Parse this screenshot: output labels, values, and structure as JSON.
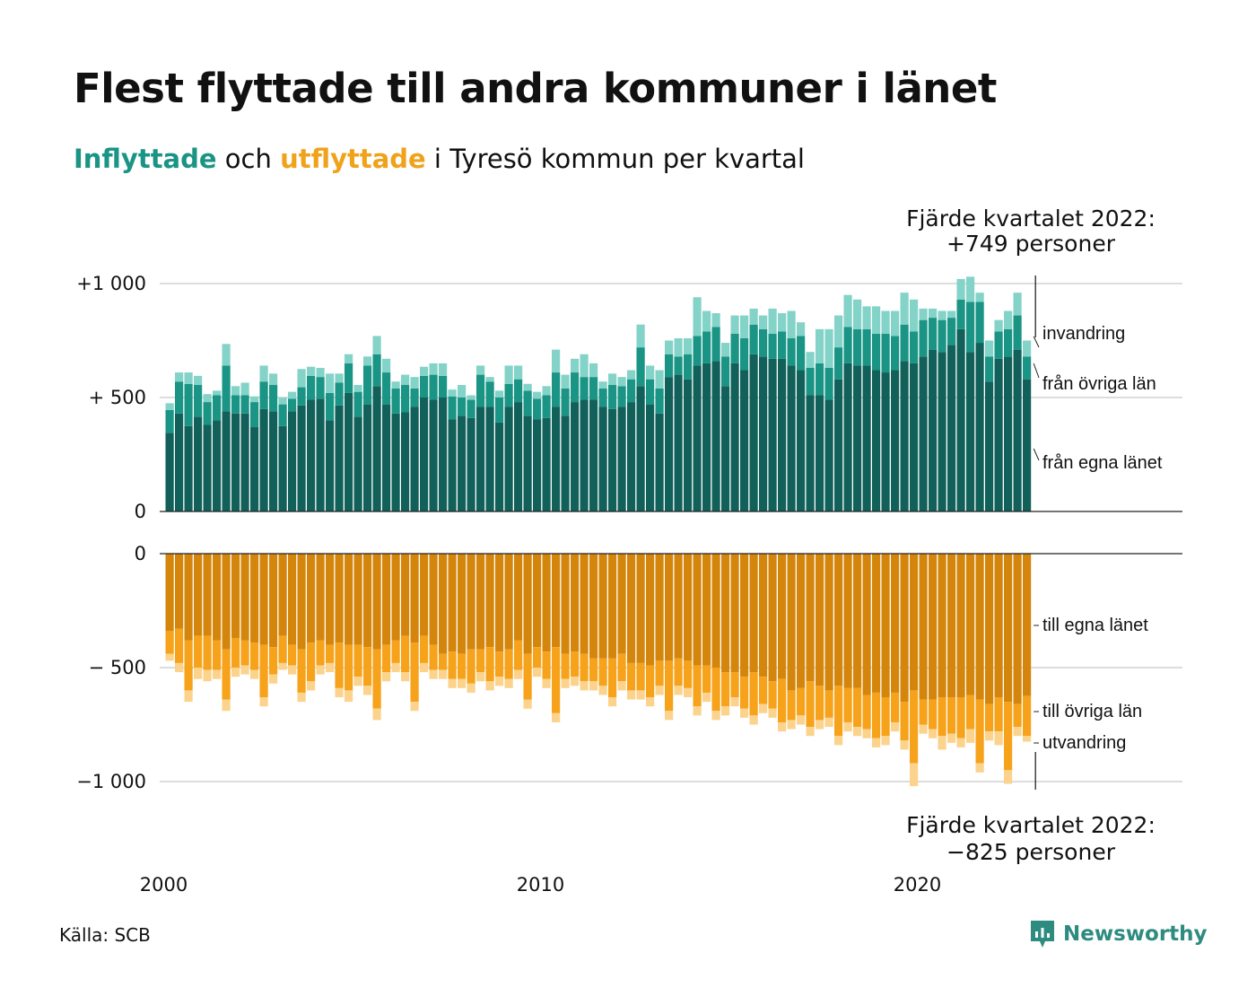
{
  "title": "Flest flyttade till andra kommuner i länet",
  "subtitle": {
    "in_word": "Inflyttade",
    "connector": " och ",
    "out_word": "utflyttade",
    "rest": " i Tyresö kommun per kvartal"
  },
  "source": "Källa: SCB",
  "brand": "Newsworthy",
  "colors": {
    "in_egna": "#12605a",
    "in_ovriga": "#1a9485",
    "in_invandring": "#84d3c8",
    "out_egna": "#d4860c",
    "out_ovriga": "#f6a21a",
    "out_utvandring": "#fbd38d",
    "grid": "#dddddd",
    "brand": "#2e8b7f"
  },
  "chart_data": {
    "type": "bar",
    "stacked": true,
    "x_start": "2000 Q1",
    "x_end": "2022 Q4",
    "x_tick_labels": [
      "2000",
      "2010",
      "2020"
    ],
    "top_panel": {
      "y_tick_labels": [
        "+1 000",
        "+ 500",
        "0"
      ],
      "ylim": [
        0,
        1000
      ],
      "series": [
        {
          "name": "från egna länet",
          "values": [
            345,
            430,
            375,
            415,
            380,
            400,
            440,
            430,
            430,
            370,
            450,
            440,
            375,
            440,
            465,
            490,
            495,
            400,
            465,
            520,
            415,
            470,
            550,
            470,
            430,
            435,
            460,
            500,
            490,
            500,
            405,
            420,
            410,
            460,
            460,
            390,
            460,
            480,
            420,
            405,
            410,
            460,
            420,
            480,
            490,
            490,
            460,
            450,
            460,
            480,
            550,
            470,
            430,
            590,
            600,
            580,
            640,
            650,
            660,
            550,
            650,
            620,
            690,
            680,
            670,
            670,
            640,
            620,
            510,
            510,
            490,
            580,
            650,
            640,
            640,
            620,
            610,
            620,
            660,
            650,
            680,
            710,
            700,
            730,
            800,
            700,
            740,
            570,
            670,
            680,
            710,
            580
          ]
        },
        {
          "name": "från övriga län",
          "values": [
            100,
            140,
            185,
            140,
            100,
            110,
            200,
            80,
            80,
            110,
            120,
            115,
            95,
            55,
            80,
            105,
            95,
            120,
            100,
            130,
            110,
            170,
            140,
            140,
            110,
            120,
            80,
            95,
            110,
            95,
            100,
            80,
            80,
            140,
            110,
            110,
            100,
            100,
            110,
            90,
            100,
            150,
            120,
            130,
            100,
            100,
            80,
            105,
            90,
            100,
            170,
            110,
            110,
            100,
            80,
            110,
            130,
            140,
            150,
            130,
            130,
            140,
            130,
            120,
            110,
            120,
            120,
            150,
            120,
            140,
            140,
            140,
            160,
            160,
            160,
            160,
            170,
            150,
            160,
            140,
            160,
            140,
            140,
            120,
            130,
            220,
            180,
            110,
            120,
            120,
            150,
            100
          ]
        },
        {
          "name": "invandring",
          "values": [
            30,
            40,
            50,
            40,
            35,
            20,
            95,
            40,
            55,
            25,
            70,
            50,
            30,
            30,
            80,
            40,
            40,
            85,
            40,
            40,
            30,
            40,
            80,
            60,
            30,
            45,
            50,
            40,
            50,
            55,
            30,
            55,
            20,
            40,
            20,
            30,
            80,
            60,
            30,
            30,
            40,
            100,
            60,
            60,
            100,
            60,
            30,
            50,
            40,
            40,
            100,
            60,
            80,
            60,
            80,
            70,
            170,
            90,
            60,
            60,
            80,
            100,
            70,
            60,
            110,
            80,
            120,
            60,
            70,
            150,
            170,
            140,
            140,
            130,
            100,
            120,
            100,
            110,
            140,
            140,
            50,
            40,
            40,
            30,
            90,
            110,
            40,
            70,
            50,
            80,
            100,
            70
          ]
        }
      ]
    },
    "bottom_panel": {
      "y_tick_labels": [
        "0",
        "− 500",
        "−1 000"
      ],
      "ylim": [
        -1000,
        0
      ],
      "series": [
        {
          "name": "till egna länet",
          "values": [
            -340,
            -330,
            -380,
            -360,
            -360,
            -380,
            -420,
            -370,
            -380,
            -390,
            -400,
            -410,
            -360,
            -400,
            -420,
            -390,
            -380,
            -400,
            -390,
            -400,
            -400,
            -410,
            -420,
            -400,
            -380,
            -360,
            -390,
            -360,
            -400,
            -440,
            -430,
            -440,
            -420,
            -420,
            -410,
            -430,
            -420,
            -380,
            -440,
            -410,
            -430,
            -410,
            -440,
            -430,
            -440,
            -460,
            -460,
            -460,
            -440,
            -480,
            -480,
            -490,
            -470,
            -470,
            -460,
            -470,
            -490,
            -490,
            -500,
            -520,
            -520,
            -540,
            -520,
            -540,
            -560,
            -550,
            -600,
            -590,
            -560,
            -580,
            -600,
            -580,
            -590,
            -590,
            -620,
            -610,
            -630,
            -610,
            -650,
            -600,
            -640,
            -640,
            -630,
            -630,
            -630,
            -620,
            -640,
            -660,
            -630,
            -650,
            -660,
            -625
          ]
        },
        {
          "name": "till övriga län",
          "values": [
            -100,
            -150,
            -220,
            -140,
            -150,
            -130,
            -220,
            -130,
            -110,
            -120,
            -230,
            -120,
            -120,
            -90,
            -190,
            -170,
            -110,
            -80,
            -200,
            -200,
            -140,
            -170,
            -260,
            -120,
            -100,
            -160,
            -260,
            -120,
            -110,
            -70,
            -120,
            -110,
            -150,
            -100,
            -150,
            -110,
            -130,
            -130,
            -200,
            -90,
            -120,
            -290,
            -110,
            -110,
            -120,
            -100,
            -120,
            -170,
            -120,
            -120,
            -120,
            -140,
            -110,
            -220,
            -120,
            -120,
            -180,
            -120,
            -190,
            -150,
            -110,
            -140,
            -190,
            -120,
            -120,
            -190,
            -130,
            -120,
            -200,
            -150,
            -120,
            -220,
            -150,
            -170,
            -150,
            -200,
            -170,
            -130,
            -170,
            -320,
            -110,
            -130,
            -170,
            -160,
            -180,
            -150,
            -280,
            -120,
            -150,
            -300,
            -100,
            -175
          ]
        },
        {
          "name": "utvandring",
          "values": [
            -30,
            -40,
            -50,
            -50,
            -50,
            -40,
            -50,
            -40,
            -40,
            -40,
            -40,
            -40,
            -30,
            -40,
            -40,
            -40,
            -40,
            -40,
            -40,
            -50,
            -40,
            -40,
            -50,
            -40,
            -40,
            -40,
            -40,
            -40,
            -40,
            -40,
            -40,
            -40,
            -40,
            -40,
            -40,
            -40,
            -40,
            -40,
            -40,
            -40,
            -40,
            -40,
            -40,
            -40,
            -40,
            -40,
            -40,
            -40,
            -40,
            -40,
            -40,
            -40,
            -40,
            -40,
            -40,
            -40,
            -40,
            -40,
            -40,
            -40,
            -40,
            -40,
            -40,
            -40,
            -40,
            -40,
            -40,
            -40,
            -40,
            -40,
            -40,
            -40,
            -40,
            -40,
            -40,
            -40,
            -40,
            -40,
            -40,
            -100,
            -40,
            -40,
            -60,
            -40,
            -40,
            -60,
            -40,
            -40,
            -60,
            -60,
            -40,
            -25
          ]
        }
      ]
    },
    "annotations": {
      "top_callout": [
        "Fjärde kvartalet 2022:",
        "+749 personer"
      ],
      "bottom_callout": [
        "Fjärde kvartalet 2022:",
        "−825 personer"
      ],
      "top_labels": [
        "invandring",
        "från övriga län",
        "från egna länet"
      ],
      "bottom_labels": [
        "till egna länet",
        "till övriga län",
        "utvandring"
      ]
    },
    "grid": true,
    "legend": "direct labels at right"
  }
}
